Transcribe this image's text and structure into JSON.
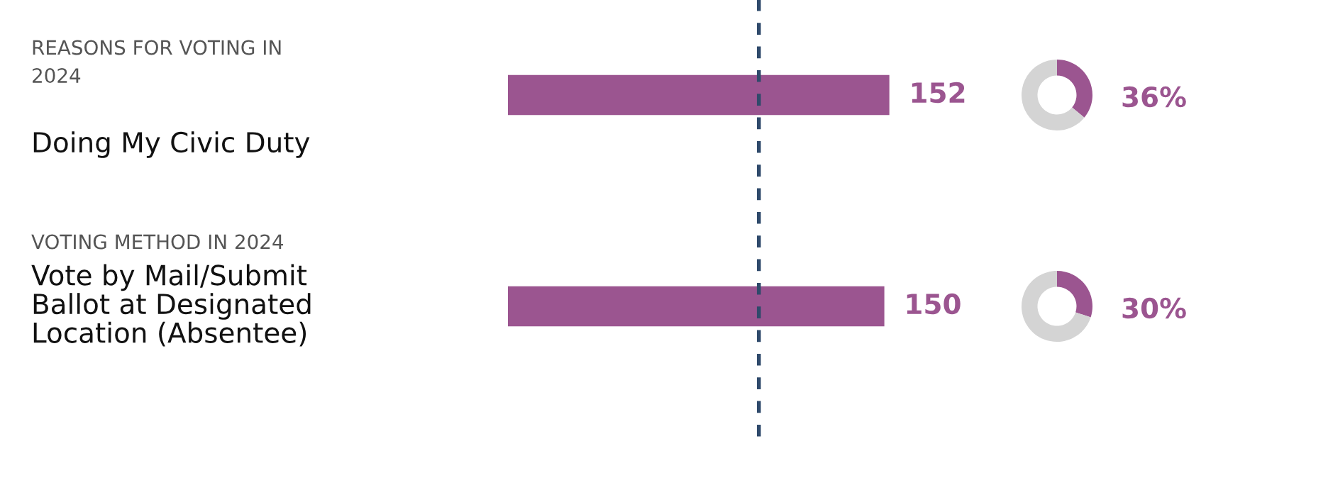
{
  "chart_data": [
    {
      "type": "bar",
      "orientation": "horizontal",
      "categories": [
        "Doing My Civic Duty",
        "Vote by Mail/Submit\nBallot at Designated\nLocation (Absentee)"
      ],
      "values": [
        152,
        150
      ],
      "color": "#9b5590",
      "data_labels": true,
      "tick_labels": "y",
      "annotations": [
        "REASONS FOR VOTING IN\n2024",
        "VOTING METHOD IN 2024"
      ],
      "ref_lines": [
        {
          "axis": "x",
          "value": 100,
          "color": "#2f4a6b",
          "line_style": "dashed"
        }
      ]
    },
    {
      "type": "donut",
      "categories": [
        null,
        null
      ],
      "values": [
        36,
        64
      ],
      "colors": [
        "#9b5590",
        "#d4d4d4"
      ],
      "value_labels": [
        "36%",
        null
      ]
    },
    {
      "type": "donut",
      "categories": [
        null,
        null
      ],
      "values": [
        30,
        70
      ],
      "colors": [
        "#9b5590",
        "#d4d4d4"
      ],
      "value_labels": [
        "30%",
        null
      ]
    }
  ]
}
